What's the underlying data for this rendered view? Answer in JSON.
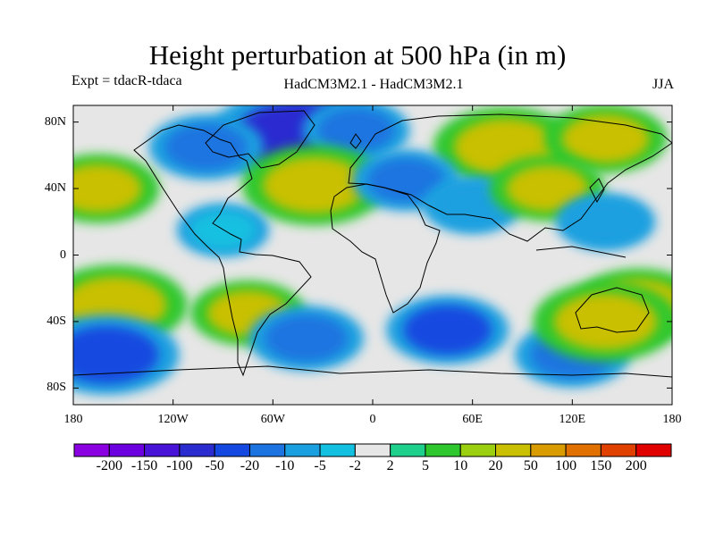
{
  "title": "Height perturbation at 500 hPa (in m)",
  "experiment": "Expt = tdacR-tdaca",
  "models": "HadCM3M2.1 - HadCM3M2.1",
  "season": "JJA",
  "lat_ticks": [
    "80N",
    "40N",
    "0",
    "40S",
    "80S"
  ],
  "lon_ticks": [
    "180",
    "120W",
    "60W",
    "0",
    "60E",
    "120E",
    "180"
  ],
  "colorbar": {
    "labels": [
      "-200",
      "-150",
      "-100",
      "-50",
      "-20",
      "-10",
      "-5",
      "-2",
      "2",
      "5",
      "10",
      "20",
      "50",
      "100",
      "150",
      "200"
    ],
    "colors": [
      "#8a00e0",
      "#6c00e0",
      "#4a14d8",
      "#2a2cd0",
      "#1448e0",
      "#1d74e0",
      "#1aa0e0",
      "#14c0e0",
      "#e6e6e6",
      "#1ed08c",
      "#2ec82e",
      "#9ad010",
      "#c8c000",
      "#d89c00",
      "#e07000",
      "#e04000",
      "#e00000"
    ]
  },
  "field": {
    "background": "#e6e6e6",
    "features": [
      {
        "lon": -45,
        "lat": 72,
        "value": -60
      },
      {
        "lon": -100,
        "lat": 65,
        "value": -20
      },
      {
        "lon": -10,
        "lat": 75,
        "value": -15
      },
      {
        "lon": 80,
        "lat": 65,
        "value": 40
      },
      {
        "lon": 140,
        "lat": 70,
        "value": 25
      },
      {
        "lon": -35,
        "lat": 42,
        "value": 40
      },
      {
        "lon": 20,
        "lat": 45,
        "value": -15
      },
      {
        "lon": 60,
        "lat": 30,
        "value": -10
      },
      {
        "lon": 105,
        "lat": 40,
        "value": 20
      },
      {
        "lon": -165,
        "lat": 40,
        "value": 25
      },
      {
        "lon": -90,
        "lat": 15,
        "value": -5
      },
      {
        "lon": 140,
        "lat": 20,
        "value": -10
      },
      {
        "lon": 160,
        "lat": -30,
        "value": 30
      },
      {
        "lon": -155,
        "lat": -30,
        "value": 40
      },
      {
        "lon": -75,
        "lat": -35,
        "value": 20
      },
      {
        "lon": -40,
        "lat": -50,
        "value": -20
      },
      {
        "lon": 45,
        "lat": -45,
        "value": -25
      },
      {
        "lon": -160,
        "lat": -60,
        "value": -40
      },
      {
        "lon": 120,
        "lat": -60,
        "value": -20
      },
      {
        "lon": 140,
        "lat": -40,
        "value": 40
      }
    ]
  }
}
